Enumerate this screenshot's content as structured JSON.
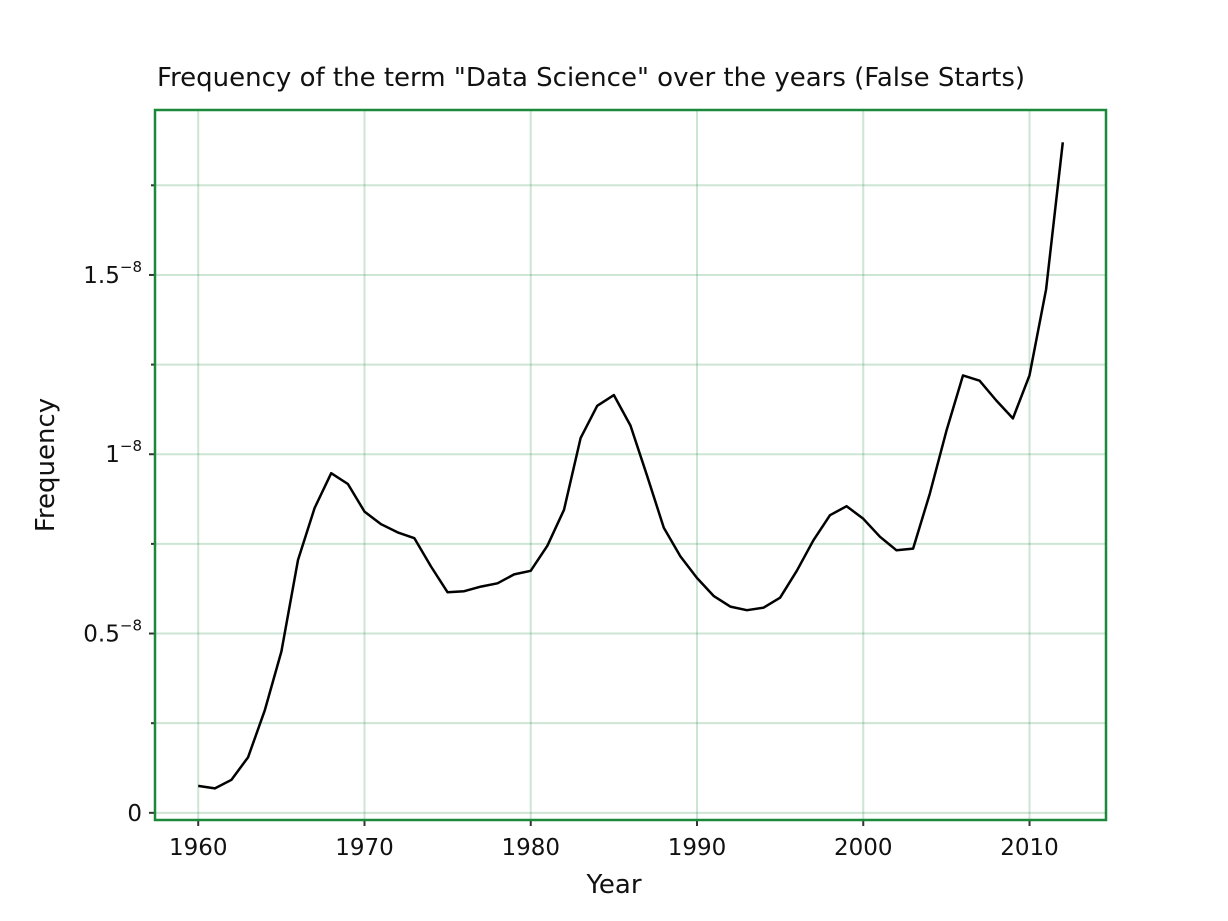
{
  "chart_data": {
    "type": "line",
    "title": "Frequency of the term \"Data Science\" over the years (False Starts)",
    "xlabel": "Year",
    "ylabel": "Frequency",
    "xlim": [
      1957.4,
      2014.6
    ],
    "ylim": [
      -2e-10,
      1.96e-08
    ],
    "grid": true,
    "x_ticks": [
      1960,
      1970,
      1980,
      1990,
      2000,
      2010
    ],
    "x_tick_labels": [
      "1960",
      "1970",
      "1980",
      "1990",
      "2000",
      "2010"
    ],
    "y_major_ticks": [
      0,
      5e-09,
      1e-08,
      1.5e-08
    ],
    "y_tick_labels": [
      {
        "base": "0",
        "exp": ""
      },
      {
        "base": "0.5",
        "exp": "−8"
      },
      {
        "base": "1",
        "exp": "−8"
      },
      {
        "base": "1.5",
        "exp": "−8"
      }
    ],
    "y_minor_ticks": [
      2.5e-09,
      7.5e-09,
      1.25e-08,
      1.75e-08
    ],
    "series": [
      {
        "color": "#000000",
        "x": [
          1960,
          1961,
          1962,
          1963,
          1964,
          1965,
          1966,
          1967,
          1968,
          1969,
          1970,
          1971,
          1972,
          1973,
          1974,
          1975,
          1976,
          1977,
          1978,
          1979,
          1980,
          1981,
          1982,
          1983,
          1984,
          1985,
          1986,
          1987,
          1988,
          1989,
          1990,
          1991,
          1992,
          1993,
          1994,
          1995,
          1996,
          1997,
          1998,
          1999,
          2000,
          2001,
          2002,
          2003,
          2004,
          2005,
          2006,
          2007,
          2008,
          2009,
          2010,
          2011,
          2012
        ],
        "y": [
          7.5e-10,
          6.8e-10,
          9.2e-10,
          1.55e-09,
          2.85e-09,
          4.5e-09,
          7.05e-09,
          8.5e-09,
          9.47e-09,
          9.17e-09,
          8.4e-09,
          8.05e-09,
          7.82e-09,
          7.66e-09,
          6.87e-09,
          6.15e-09,
          6.18e-09,
          6.31e-09,
          6.4e-09,
          6.65e-09,
          6.75e-09,
          7.45e-09,
          8.45e-09,
          1.045e-08,
          1.135e-08,
          1.165e-08,
          1.08e-08,
          9.4e-09,
          7.95e-09,
          7.15e-09,
          6.55e-09,
          6.05e-09,
          5.75e-09,
          5.65e-09,
          5.72e-09,
          6e-09,
          6.75e-09,
          7.6e-09,
          8.3e-09,
          8.55e-09,
          8.2e-09,
          7.7e-09,
          7.32e-09,
          7.37e-09,
          8.9e-09,
          1.065e-08,
          1.22e-08,
          1.205e-08,
          1.15e-08,
          1.1e-08,
          1.22e-08,
          1.46e-08,
          1.87e-08
        ]
      }
    ]
  }
}
